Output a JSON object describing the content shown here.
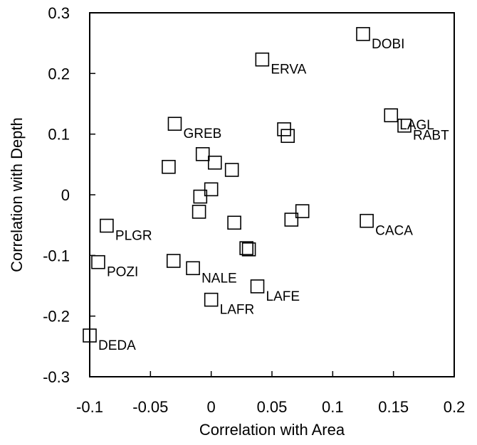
{
  "chart_data": {
    "type": "scatter",
    "title": "",
    "xlabel": "Correlation with Area",
    "ylabel": "Correlation with Depth",
    "xlim": [
      -0.1,
      0.2
    ],
    "ylim": [
      -0.3,
      0.3
    ],
    "xticks": [
      -0.1,
      -0.05,
      0,
      0.05,
      0.1,
      0.15,
      0.2
    ],
    "xtick_labels": [
      "-0.1",
      "-0.05",
      "0",
      "0.05",
      "0.1",
      "0.15",
      "0.2"
    ],
    "yticks": [
      -0.3,
      -0.2,
      -0.1,
      0,
      0.1,
      0.2,
      0.3
    ],
    "ytick_labels": [
      "-0.3",
      "-0.2",
      "-0.1",
      "0",
      "0.1",
      "0.2",
      "0.3"
    ],
    "grid": false,
    "legend": "none",
    "marker": "open-square",
    "points": [
      {
        "x": 0.125,
        "y": 0.265,
        "label": "DOBI"
      },
      {
        "x": 0.042,
        "y": 0.223,
        "label": "ERVA"
      },
      {
        "x": 0.148,
        "y": 0.131,
        "label": "LAGL"
      },
      {
        "x": 0.159,
        "y": 0.114,
        "label": "RABT"
      },
      {
        "x": -0.03,
        "y": 0.117,
        "label": "GREB"
      },
      {
        "x": 0.06,
        "y": 0.108,
        "label": ""
      },
      {
        "x": 0.063,
        "y": 0.097,
        "label": ""
      },
      {
        "x": -0.007,
        "y": 0.067,
        "label": ""
      },
      {
        "x": 0.003,
        "y": 0.053,
        "label": ""
      },
      {
        "x": 0.017,
        "y": 0.041,
        "label": ""
      },
      {
        "x": -0.035,
        "y": 0.046,
        "label": ""
      },
      {
        "x": 0.0,
        "y": 0.009,
        "label": ""
      },
      {
        "x": -0.009,
        "y": -0.003,
        "label": ""
      },
      {
        "x": -0.01,
        "y": -0.028,
        "label": ""
      },
      {
        "x": 0.075,
        "y": -0.027,
        "label": ""
      },
      {
        "x": 0.066,
        "y": -0.041,
        "label": ""
      },
      {
        "x": 0.128,
        "y": -0.043,
        "label": "CACA"
      },
      {
        "x": 0.019,
        "y": -0.046,
        "label": ""
      },
      {
        "x": -0.086,
        "y": -0.051,
        "label": "PLGR"
      },
      {
        "x": 0.029,
        "y": -0.088,
        "label": ""
      },
      {
        "x": 0.031,
        "y": -0.09,
        "label": ""
      },
      {
        "x": -0.093,
        "y": -0.111,
        "label": "POZI"
      },
      {
        "x": -0.031,
        "y": -0.109,
        "label": ""
      },
      {
        "x": -0.015,
        "y": -0.121,
        "label": "NALE"
      },
      {
        "x": 0.038,
        "y": -0.151,
        "label": "LAFE"
      },
      {
        "x": 0.0,
        "y": -0.173,
        "label": "LAFR"
      },
      {
        "x": -0.1,
        "y": -0.232,
        "label": "DEDA"
      }
    ]
  }
}
